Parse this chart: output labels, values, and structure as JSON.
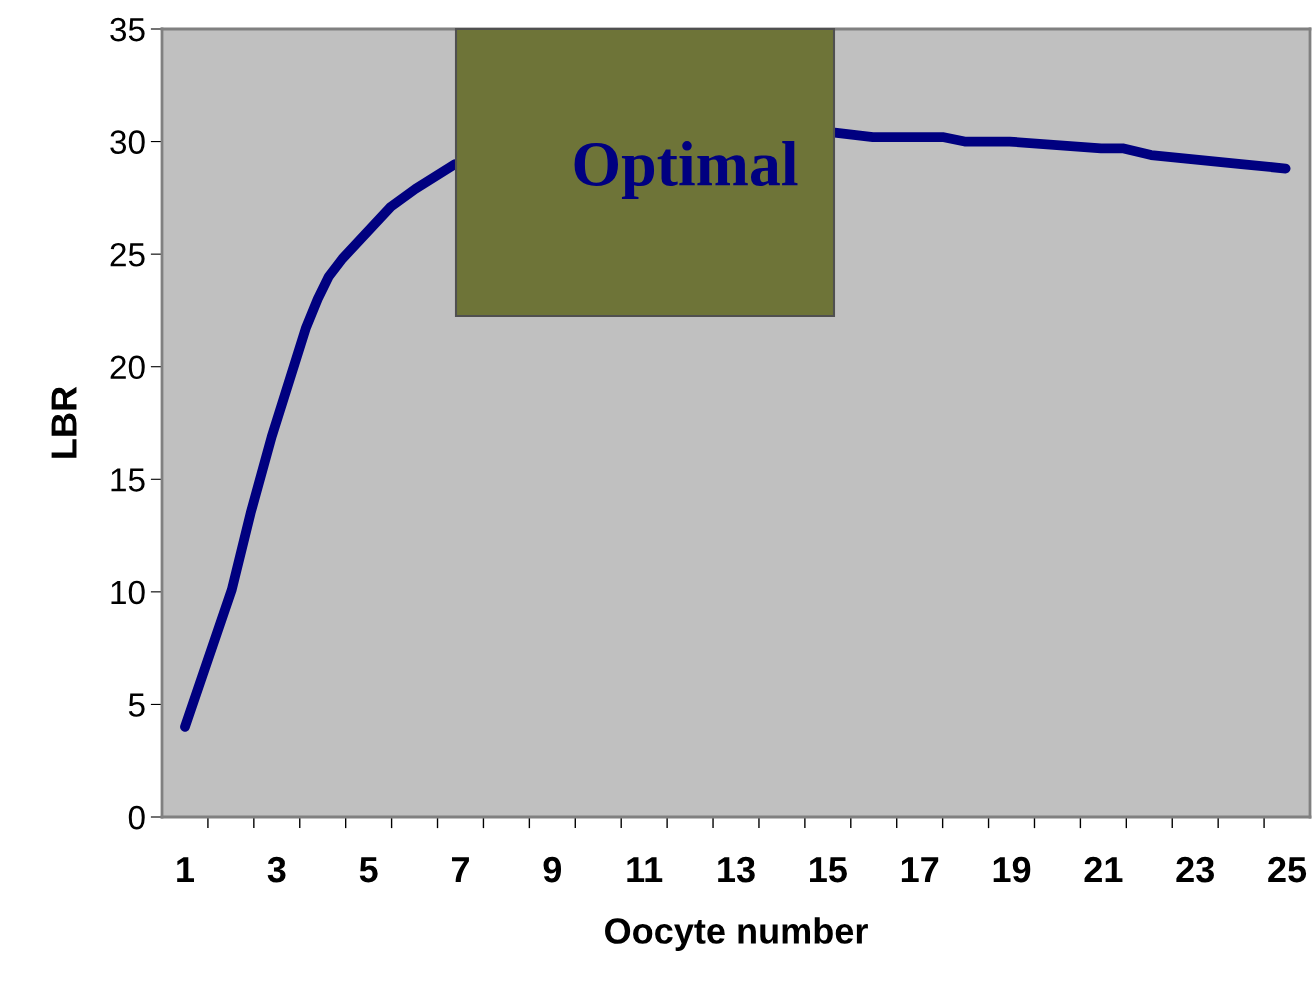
{
  "chart_data": {
    "type": "line",
    "xlabel": "Oocyte number",
    "ylabel": "LBR",
    "series": [
      {
        "color": "#000080",
        "x": [
          1,
          2.02,
          2.43,
          2.89,
          3.63,
          3.89,
          4.13,
          4.43,
          5.48,
          6.02,
          6.88,
          11,
          15.15,
          15.98,
          17.5,
          17.98,
          18.96,
          20.95,
          21.42,
          22.04,
          24.0,
          24.97
        ],
        "values": [
          4.0,
          10.1,
          13.5,
          16.9,
          21.7,
          23.0,
          24.0,
          24.8,
          27.1,
          27.9,
          29.0,
          null,
          30.4,
          30.2,
          30.2,
          30.0,
          30.0,
          29.7,
          29.7,
          29.4,
          29.0,
          28.8
        ]
      }
    ],
    "xlim": [
      0.5,
      25.5
    ],
    "xticks": [
      1,
      {
        "value": 1.5,
        "label": null
      },
      3,
      {
        "value": 2.5,
        "label": null
      },
      {
        "value": 3.5,
        "label": null
      },
      {
        "value": 4.5,
        "label": null
      },
      5,
      {
        "value": 5.5,
        "label": null
      },
      {
        "value": 6.5,
        "label": null
      },
      7,
      {
        "value": 7.5,
        "label": null
      },
      {
        "value": 8.5,
        "label": null
      },
      9,
      {
        "value": 9.5,
        "label": null
      },
      {
        "value": 10.5,
        "label": null
      },
      11,
      {
        "value": 11.5,
        "label": null
      },
      {
        "value": 12.5,
        "label": null
      },
      13,
      {
        "value": 13.5,
        "label": null
      },
      {
        "value": 14.5,
        "label": null
      },
      15,
      {
        "value": 15.5,
        "label": null
      },
      {
        "value": 16.5,
        "label": null
      },
      17,
      {
        "value": 17.5,
        "label": null
      },
      {
        "value": 18.5,
        "label": null
      },
      19,
      {
        "value": 19.5,
        "label": null
      },
      {
        "value": 20.5,
        "label": null
      },
      21,
      {
        "value": 21.5,
        "label": null
      },
      {
        "value": 22.5,
        "label": null
      },
      23,
      {
        "value": 23.5,
        "label": null
      },
      {
        "value": 24.5,
        "label": null
      },
      25
    ],
    "ylim": [
      0,
      35
    ],
    "yticks": [
      0,
      5,
      10,
      15,
      20,
      25,
      30,
      35
    ],
    "annotations": [
      "Optimal"
    ],
    "grid": false,
    "legend": false,
    "marker": "none",
    "line_style": "solid"
  }
}
